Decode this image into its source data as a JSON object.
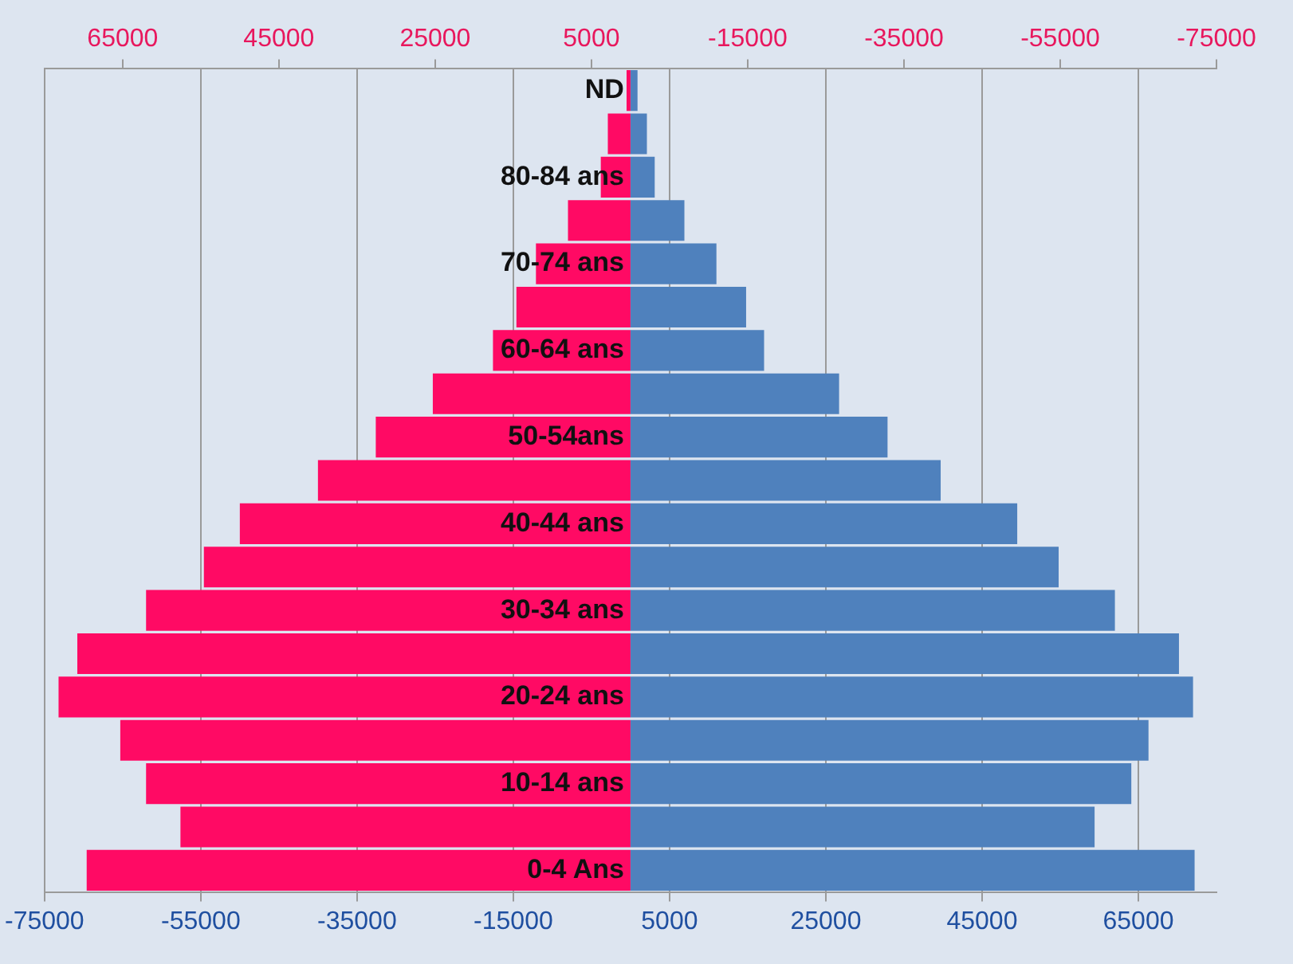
{
  "chart_data": {
    "type": "bar",
    "orientation": "horizontal",
    "stacked": true,
    "grid": "x",
    "legend": false,
    "categories": [
      "ND",
      null,
      "80-84 ans",
      null,
      "70-74 ans",
      null,
      "60-64 ans",
      null,
      "50-54ans",
      null,
      "40-44 ans",
      null,
      "30-34 ans",
      null,
      "20-24 ans",
      null,
      "10-14 ans",
      null,
      "0-4 Ans"
    ],
    "series": [
      {
        "color": "#ff0a64",
        "values": [
          -500,
          -2900,
          -3800,
          -8000,
          -12100,
          -14600,
          -17600,
          -25300,
          -32600,
          -40000,
          -50000,
          -54600,
          -62000,
          -70800,
          -73200,
          -65300,
          -62000,
          -57600,
          -69600
        ]
      },
      {
        "color": "#4f81bd",
        "values": [
          900,
          2100,
          3100,
          6900,
          11000,
          14800,
          17100,
          26700,
          32900,
          39700,
          49500,
          54800,
          62000,
          70200,
          72000,
          66300,
          64100,
          59400,
          72200
        ]
      }
    ],
    "xlim": [
      -75000,
      75000
    ],
    "xticks": [
      -75000,
      -55000,
      -35000,
      -15000,
      5000,
      25000,
      45000,
      65000
    ],
    "x2lim": [
      75000,
      -75000
    ],
    "x2ticks": [
      65000,
      45000,
      25000,
      5000,
      -15000,
      -35000,
      -55000,
      -75000
    ]
  }
}
